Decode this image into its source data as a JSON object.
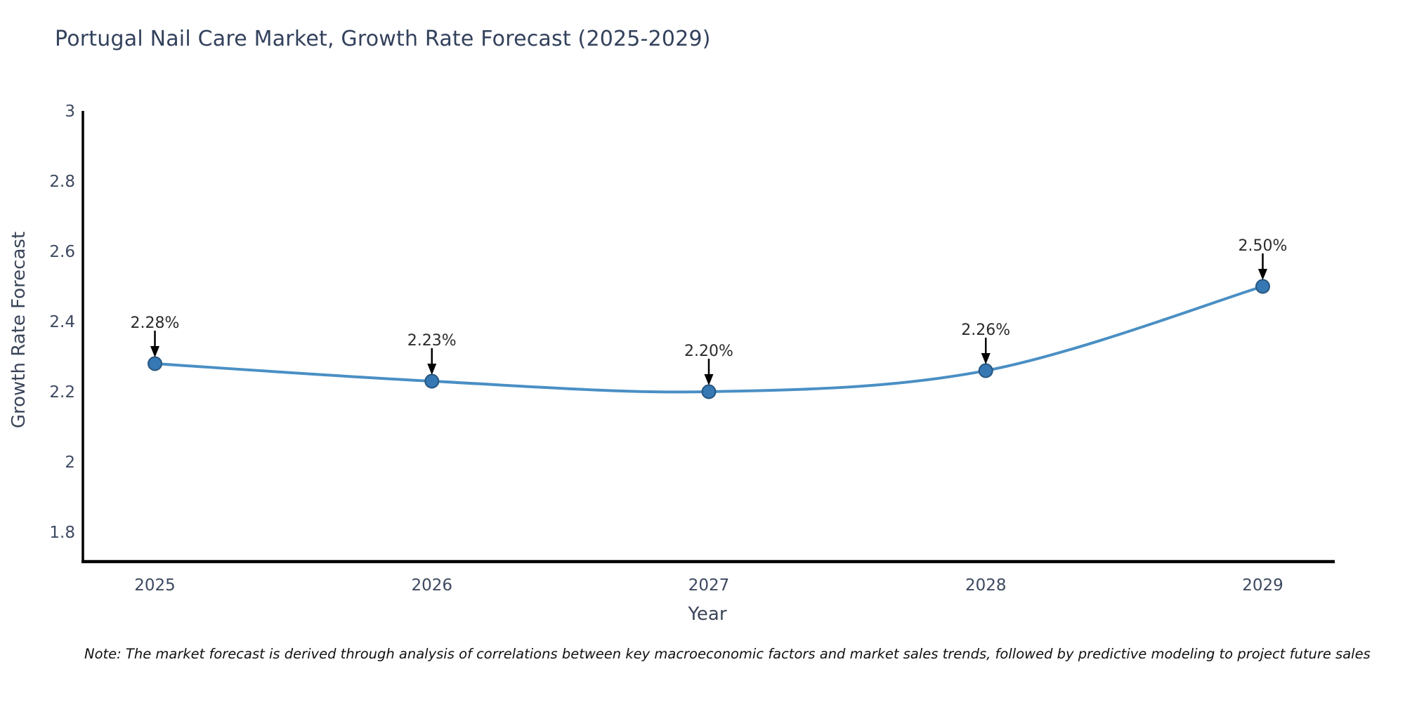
{
  "header": {
    "title": "Portugal Nail Care Market, Growth Rate Forecast (2025-2029)"
  },
  "chart_data": {
    "type": "line",
    "title": "Portugal Nail Care Market, Growth Rate Forecast (2025-2029)",
    "x": [
      2025,
      2026,
      2027,
      2028,
      2029
    ],
    "series": [
      {
        "name": "Growth Rate Forecast",
        "values": [
          2.28,
          2.23,
          2.2,
          2.26,
          2.5
        ]
      }
    ],
    "point_labels": [
      "2.28%",
      "2.23%",
      "2.20%",
      "2.26%",
      "2.50%"
    ],
    "xlabel": "Year",
    "ylabel": "Growth Rate Forecast",
    "xtick_labels": [
      "2025",
      "2026",
      "2027",
      "2028",
      "2029"
    ],
    "ytick_values": [
      3,
      2.8,
      2.6,
      2.4,
      2.2,
      2,
      1.8
    ],
    "ytick_labels": [
      "3",
      "2.8",
      "2.6",
      "2.4",
      "2.2",
      "2",
      "1.8"
    ],
    "ylim": [
      1.716,
      3.0
    ],
    "xlim": [
      2024.74,
      2029.26
    ],
    "grid": false,
    "legend": "none",
    "smooth_line": true,
    "colors": {
      "line": "#4a8fc4",
      "marker_fill": "#3678b3",
      "marker_edge": "#27567f",
      "annotation_text": "#2b2b2b",
      "arrow": "#000000",
      "axis_spine": "#000000",
      "tick_label": "#3d4960",
      "axis_title": "#3b4559",
      "chart_title": "#33415c",
      "note_text": "#111111"
    }
  },
  "footer": {
    "note": "Note: The market forecast is derived through analysis of correlations between key macroeconomic factors and market sales trends, followed by predictive modeling to project future sales"
  }
}
